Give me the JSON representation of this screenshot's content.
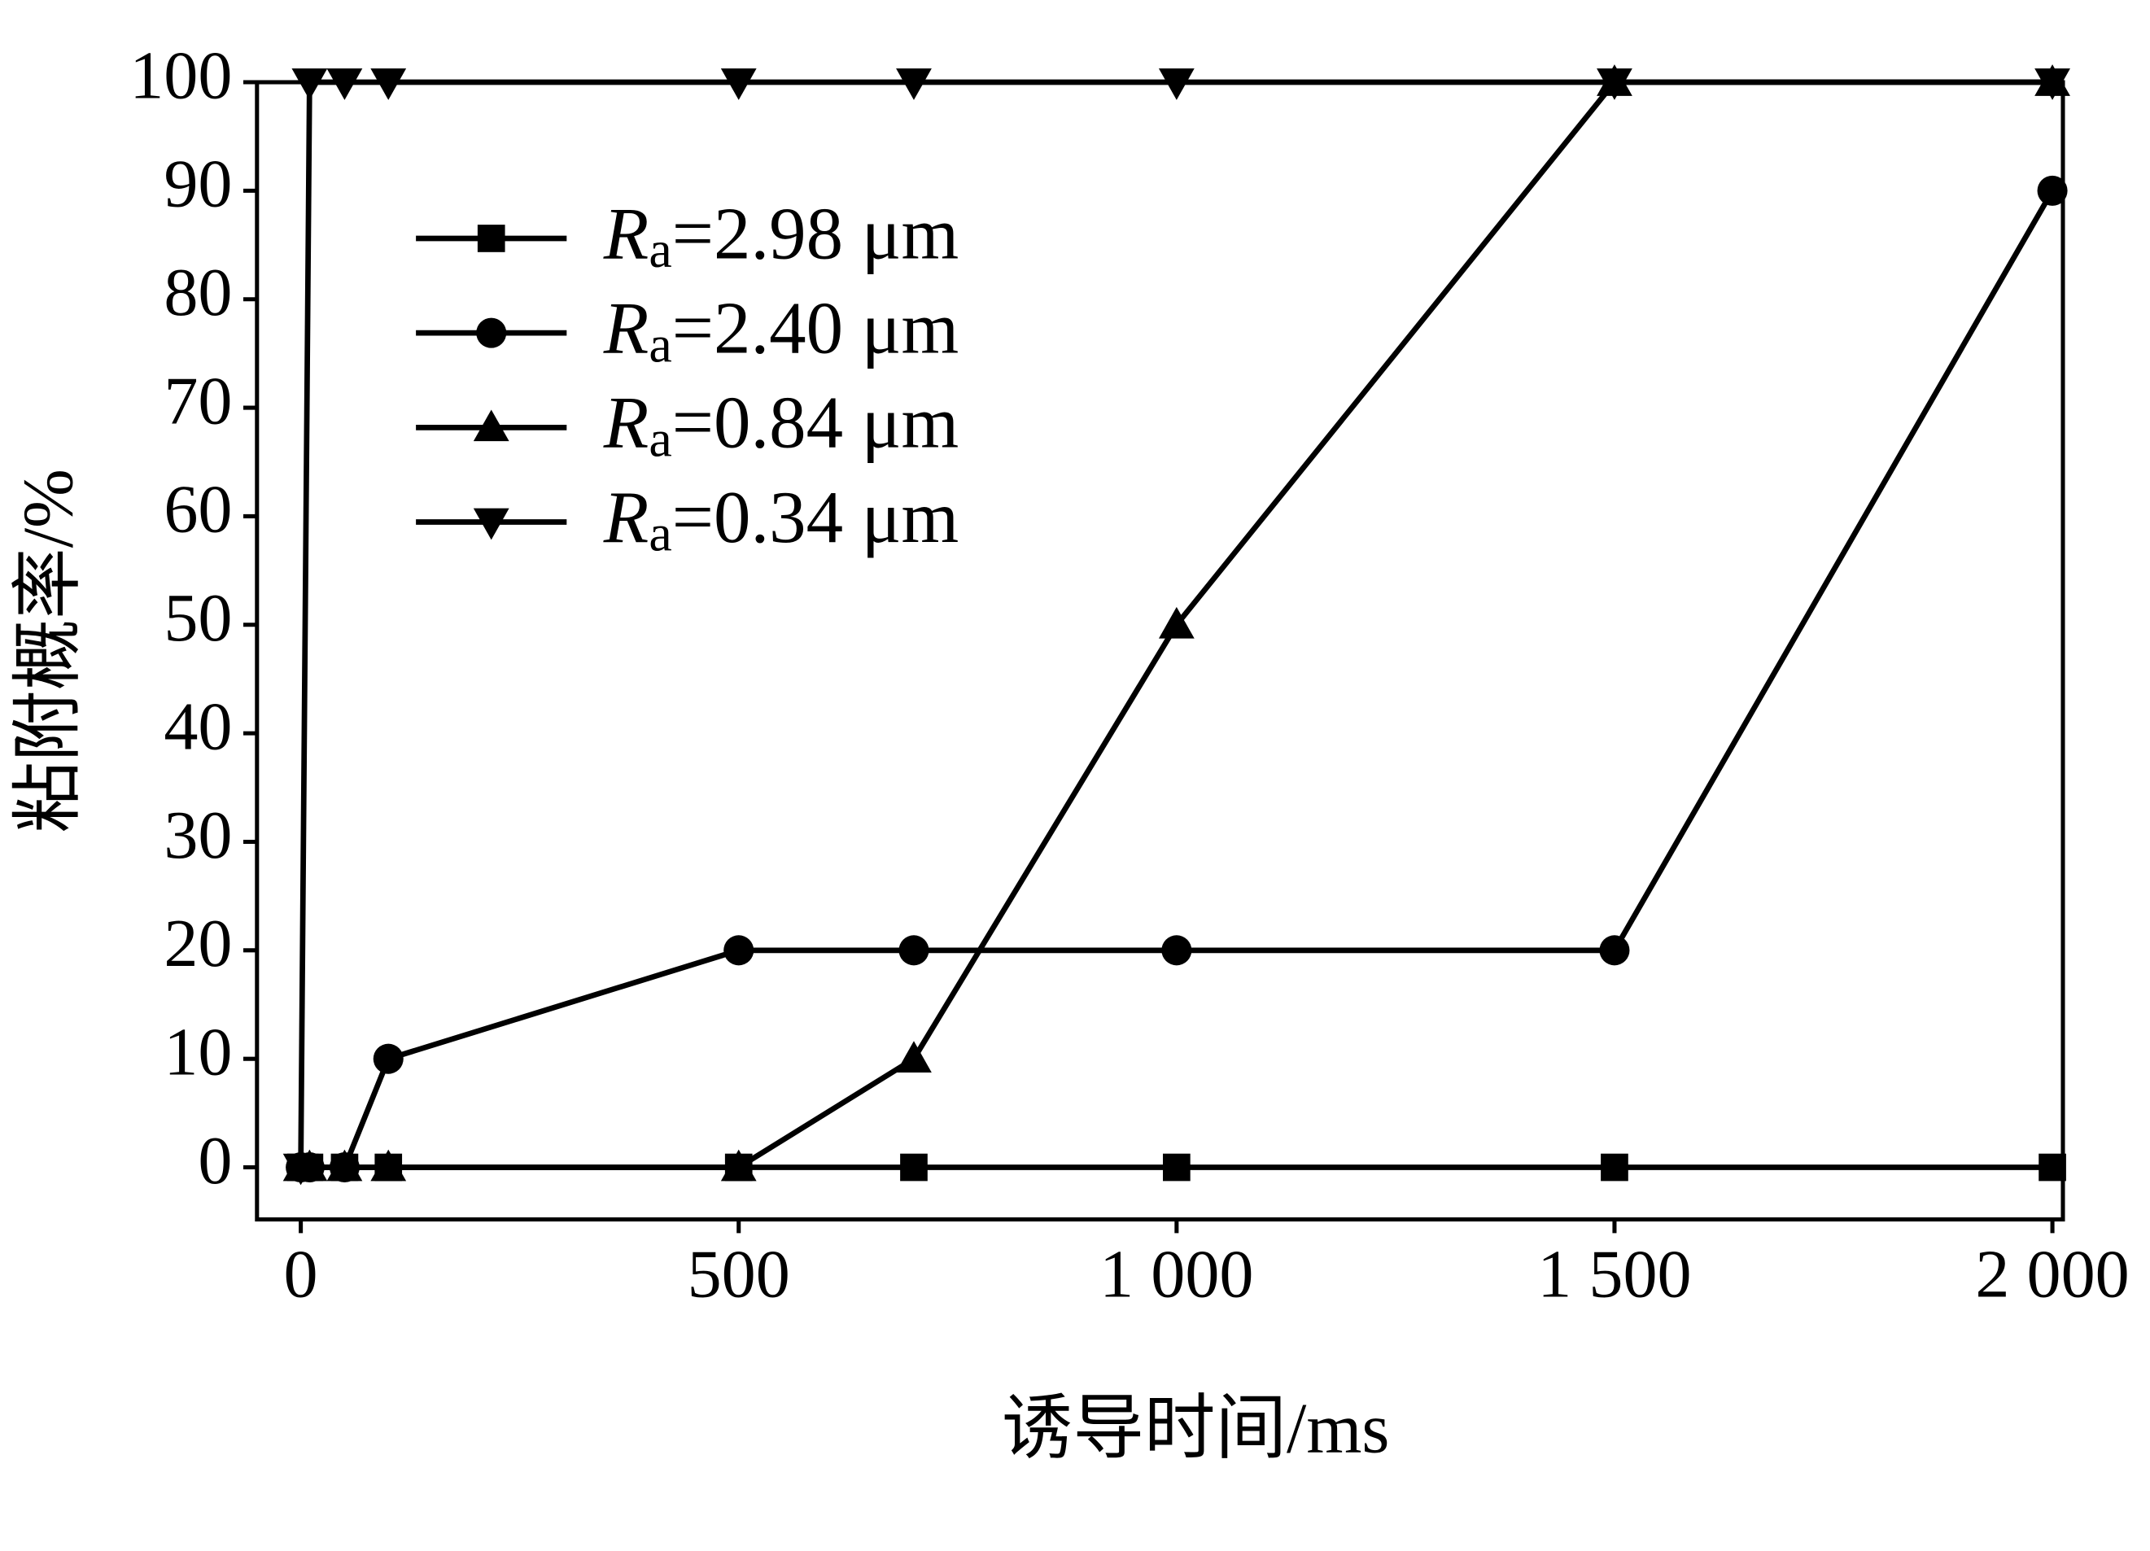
{
  "chart_data": {
    "type": "line",
    "x_label": "诱导时间/ms",
    "y_label": "粘附概率/%",
    "x": [
      0,
      10,
      50,
      100,
      500,
      700,
      1000,
      1500,
      2000
    ],
    "series": [
      {
        "name": "Ra=2.98 μm",
        "color": "#000000",
        "marker": "square",
        "values": [
          0,
          0,
          0,
          0,
          0,
          0,
          0,
          0,
          0
        ]
      },
      {
        "name": "Ra=2.40 μm",
        "color": "#000000",
        "marker": "circle",
        "values": [
          0,
          0,
          0,
          10,
          20,
          20,
          20,
          20,
          90
        ]
      },
      {
        "name": "Ra=0.84 μm",
        "color": "#000000",
        "marker": "triangle-up",
        "values": [
          0,
          0,
          0,
          0,
          0,
          10,
          50,
          100,
          100
        ]
      },
      {
        "name": "Ra=0.34 μm",
        "color": "#000000",
        "marker": "triangle-down",
        "values": [
          0,
          100,
          100,
          100,
          100,
          100,
          100,
          100,
          100
        ]
      }
    ],
    "xlim": [
      -50,
      2012
    ],
    "ylim": [
      -4.8,
      100
    ],
    "xticks": [
      0,
      500,
      {
        "value": 1000,
        "label": "1 000"
      },
      {
        "value": 1500,
        "label": "1 500"
      },
      {
        "value": 2000,
        "label": "2 000"
      }
    ],
    "yticks": [
      0,
      10,
      20,
      30,
      40,
      50,
      60,
      70,
      80,
      90,
      100
    ],
    "legend": "upper left"
  }
}
